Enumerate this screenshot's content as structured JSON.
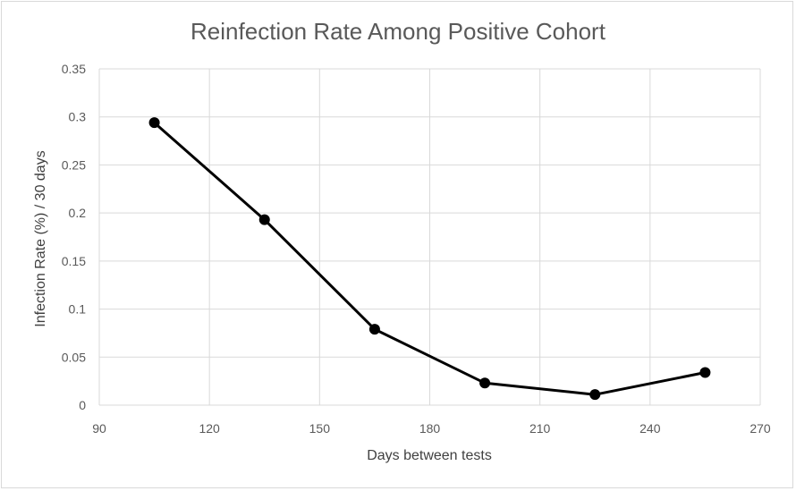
{
  "chart_data": {
    "type": "scatter",
    "title": "Reinfection Rate Among Positive Cohort",
    "xlabel": "Days between tests",
    "ylabel": "Infection Rate (%) / 30 days",
    "xlim": [
      90,
      270
    ],
    "ylim": [
      0,
      0.35
    ],
    "x_ticks": [
      "90",
      "120",
      "150",
      "180",
      "210",
      "240",
      "270"
    ],
    "y_ticks": [
      "0",
      "0.05",
      "0.1",
      "0.15",
      "0.2",
      "0.25",
      "0.3",
      "0.35"
    ],
    "grid": true,
    "series": [
      {
        "x": [
          105,
          135,
          165,
          195,
          225,
          255
        ],
        "y": [
          0.294,
          0.193,
          0.079,
          0.023,
          0.011,
          0.034
        ],
        "color": "#000000",
        "line": true,
        "marker": "circle"
      }
    ]
  }
}
